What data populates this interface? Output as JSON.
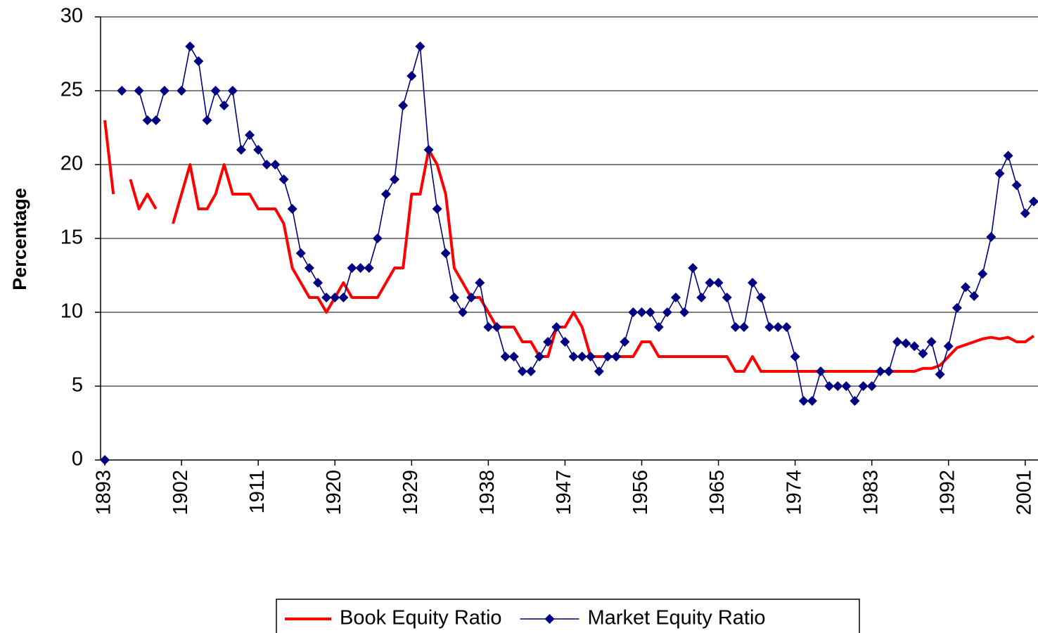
{
  "chart_data": {
    "type": "line",
    "y_label": "Percentage",
    "x": [
      1893,
      1894,
      1895,
      1896,
      1897,
      1898,
      1899,
      1900,
      1901,
      1902,
      1903,
      1904,
      1905,
      1906,
      1907,
      1908,
      1909,
      1910,
      1911,
      1912,
      1913,
      1914,
      1915,
      1916,
      1917,
      1918,
      1919,
      1920,
      1921,
      1922,
      1923,
      1924,
      1925,
      1926,
      1927,
      1928,
      1929,
      1930,
      1931,
      1932,
      1933,
      1934,
      1935,
      1936,
      1937,
      1938,
      1939,
      1940,
      1941,
      1942,
      1943,
      1944,
      1945,
      1946,
      1947,
      1948,
      1949,
      1950,
      1951,
      1952,
      1953,
      1954,
      1955,
      1956,
      1957,
      1958,
      1959,
      1960,
      1961,
      1962,
      1963,
      1964,
      1965,
      1966,
      1967,
      1968,
      1969,
      1970,
      1971,
      1972,
      1973,
      1974,
      1975,
      1976,
      1977,
      1978,
      1979,
      1980,
      1981,
      1982,
      1983,
      1984,
      1985,
      1986,
      1987,
      1988,
      1989,
      1990,
      1991,
      1992,
      1993,
      1994,
      1995,
      1996,
      1997,
      1998,
      1999,
      2000,
      2001,
      2002
    ],
    "series": [
      {
        "name": "Book Equity Ratio",
        "color": "#ff0000",
        "marker": "none",
        "values": [
          23,
          18,
          null,
          19,
          17,
          18,
          17,
          null,
          16,
          18,
          20,
          17,
          17,
          18,
          20,
          18,
          18,
          18,
          17,
          17,
          17,
          16,
          13,
          12,
          11,
          11,
          10,
          11,
          12,
          11,
          11,
          11,
          11,
          12,
          13,
          13,
          18,
          18,
          21,
          20,
          18,
          13,
          12,
          11,
          11,
          10,
          9,
          9,
          9,
          8,
          8,
          7,
          7,
          9,
          9,
          10,
          9,
          7,
          7,
          7,
          7,
          7,
          7,
          8,
          8,
          7,
          7,
          7,
          7,
          7,
          7,
          7,
          7,
          7,
          6,
          6,
          7,
          6,
          6,
          6,
          6,
          6,
          6,
          6,
          6,
          6,
          6,
          6,
          6,
          6,
          6,
          6,
          6,
          6,
          6,
          6,
          6.2,
          6.2,
          6.4,
          7,
          7.6,
          7.8,
          8,
          8.2,
          8.3,
          8.2,
          8.3,
          8,
          8,
          8.4
        ]
      },
      {
        "name": "Market Equity Ratio",
        "color": "#000080",
        "marker": "diamond",
        "values": [
          0,
          null,
          25,
          null,
          25,
          23,
          23,
          25,
          null,
          25,
          28,
          27,
          23,
          25,
          24,
          25,
          21,
          22,
          21,
          20,
          20,
          19,
          17,
          14,
          13,
          12,
          11,
          11,
          11,
          13,
          13,
          13,
          15,
          18,
          19,
          24,
          26,
          28,
          21,
          17,
          14,
          11,
          10,
          11,
          12,
          9,
          9,
          7,
          7,
          6,
          6,
          7,
          8,
          9,
          8,
          7,
          7,
          7,
          6,
          7,
          7,
          8,
          10,
          10,
          10,
          9,
          10,
          11,
          10,
          13,
          11,
          12,
          12,
          11,
          9,
          9,
          12,
          11,
          9,
          9,
          9,
          7,
          4,
          4,
          6,
          5,
          5,
          5,
          4,
          5,
          5,
          6,
          6,
          8,
          7.9,
          7.7,
          7.2,
          8,
          5.8,
          7.7,
          10.3,
          11.7,
          11.1,
          12.6,
          15.1,
          19.4,
          20.6,
          18.6,
          16.7,
          17.5
        ]
      }
    ],
    "xlim": [
      1892.5,
      2002.5
    ],
    "xticks": [
      1893,
      1902,
      1911,
      1920,
      1929,
      1938,
      1947,
      1956,
      1965,
      1974,
      1983,
      1992,
      2001
    ],
    "ylim": [
      0,
      30
    ],
    "yticks": [
      0,
      5,
      10,
      15,
      20,
      25,
      30
    ],
    "grid": true,
    "legend": "bottom"
  }
}
